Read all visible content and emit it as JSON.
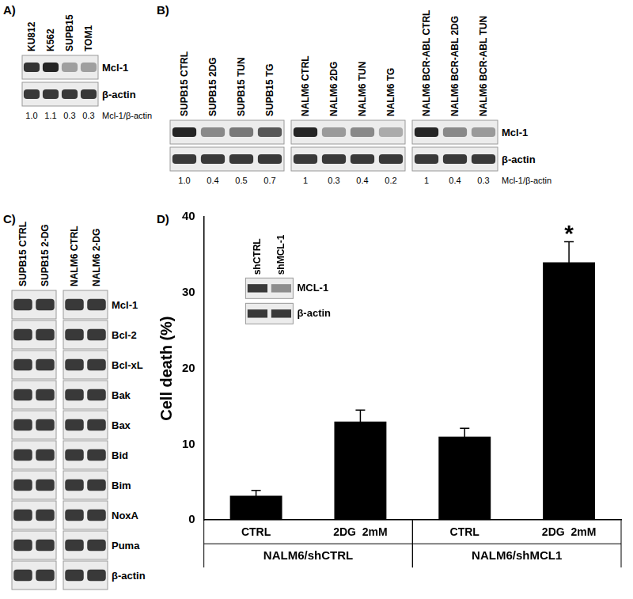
{
  "figure": {
    "panels": [
      {
        "label": "A)",
        "groups": [
          [
            "KU812",
            "K562",
            "SUPB15",
            "TOM1"
          ]
        ],
        "rows": [
          "Mcl-1",
          "β-actin"
        ],
        "ratios": [
          [
            1.0,
            1.1,
            0.3,
            0.3
          ]
        ],
        "ratio_labels": [
          [
            "1.0",
            "1.1",
            "0.3",
            "0.3"
          ]
        ],
        "ratio_name": "Mcl-1/β-actin"
      },
      {
        "label": "B)",
        "groups": [
          [
            "SUPB15 CTRL",
            "SUPB15 2DG",
            "SUPB15 TUN",
            "SUPB15 TG"
          ],
          [
            "NALM6 CTRL",
            "NALM6 2DG",
            "NALM6 TUN",
            "NALM6 TG"
          ],
          [
            "NALM6 BCR-ABL CTRL",
            "NALM6 BCR-ABL 2DG",
            "NALM6 BCR-ABL TUN"
          ]
        ],
        "rows": [
          "Mcl-1",
          "β-actin"
        ],
        "ratios": [
          [
            1.0,
            0.4,
            0.5,
            0.7
          ],
          [
            1,
            0.3,
            0.4,
            0.2
          ],
          [
            1,
            0.4,
            0.3
          ]
        ],
        "ratio_labels": [
          [
            "1.0",
            "0.4",
            "0.5",
            "0.7"
          ],
          [
            "1",
            "0.3",
            "0.4",
            "0.2"
          ],
          [
            "1",
            "0.4",
            "0.3"
          ]
        ],
        "ratio_name": "Mcl-1/β-actin"
      },
      {
        "label": "C)",
        "groups": [
          [
            "SUPB15 CTRL",
            "SUPB15 2-DG"
          ],
          [
            "NALM6 CTRL",
            "NALM6 2-DG"
          ]
        ],
        "rows": [
          "Mcl-1",
          "Bcl-2",
          "Bcl-xL",
          "Bak",
          "Bax",
          "Bid",
          "Bim",
          "NoxA",
          "Puma",
          "β-actin"
        ]
      }
    ],
    "chart_label": "D)"
  },
  "chart_data": {
    "type": "bar",
    "ylabel": "Cell death (%)",
    "categories": [
      "CTRL",
      "2DG  2mM",
      "CTRL",
      "2DG  2mM"
    ],
    "values": [
      3.2,
      13,
      11,
      34
    ],
    "errors": [
      0.7,
      1.5,
      1.1,
      2.7
    ],
    "color": "#000000",
    "ylim": [
      0,
      40
    ],
    "yticks": [
      0,
      10,
      20,
      30,
      40
    ],
    "grid": false,
    "groups": [
      {
        "name": "NALM6/shCTRL",
        "size": 2
      },
      {
        "name": "NALM6/shMCL1",
        "size": 2
      }
    ],
    "annotations": [
      {
        "text": "*",
        "x": 3
      }
    ],
    "inset": {
      "lanes": [
        "shCTRL",
        "shMCL-1"
      ],
      "rows": [
        "MCL-1",
        "β-actin"
      ]
    }
  }
}
